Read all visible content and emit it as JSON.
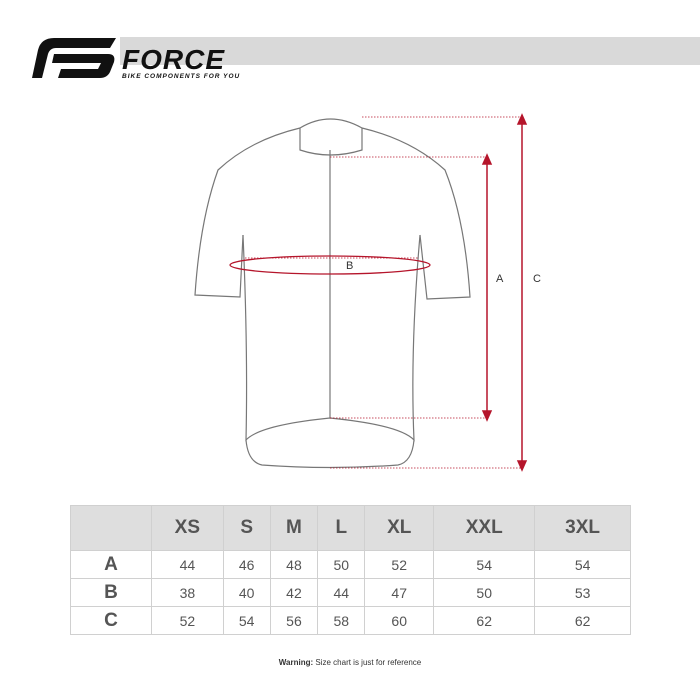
{
  "brand": {
    "name": "FORCE",
    "tagline": "BIKE COMPONENTS FOR YOU"
  },
  "diagram": {
    "labels": {
      "a": "A",
      "b": "B",
      "c": "C"
    },
    "accent_color": "#b5152b"
  },
  "table": {
    "headers": [
      "",
      "XS",
      "S",
      "M",
      "L",
      "XL",
      "XXL",
      "3XL"
    ],
    "rows": [
      {
        "label": "A",
        "values": [
          "44",
          "46",
          "48",
          "50",
          "52",
          "54",
          "54"
        ]
      },
      {
        "label": "B",
        "values": [
          "38",
          "40",
          "42",
          "44",
          "47",
          "50",
          "53"
        ]
      },
      {
        "label": "C",
        "values": [
          "52",
          "54",
          "56",
          "58",
          "60",
          "62",
          "62"
        ]
      }
    ]
  },
  "warning": {
    "label": "Warning:",
    "text": "Size chart is just for reference"
  }
}
